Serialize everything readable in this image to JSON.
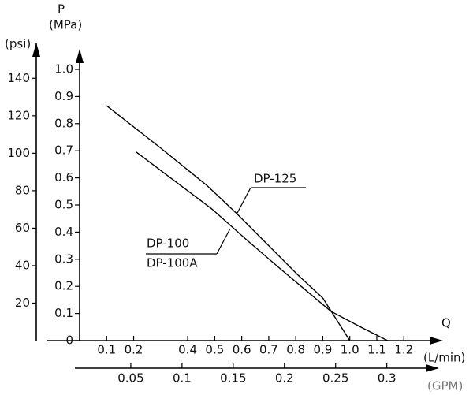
{
  "chart_data": {
    "type": "line",
    "y_label": "P",
    "y_unit": "(MPa)",
    "y2_unit": "(psi)",
    "x_label": "Q",
    "x_unit": "(L/min)",
    "x2_unit": "(GPM)",
    "xlim": [
      0,
      1.3
    ],
    "xticks": [
      0.1,
      0.2,
      0.4,
      0.5,
      0.6,
      0.7,
      0.8,
      0.9,
      {
        "value": 1,
        "label": "1.0"
      },
      1.1,
      1.2
    ],
    "x2lim": [
      0,
      0.343
    ],
    "x2ticks": [
      0.05,
      0.1,
      0.15,
      0.2,
      0.25,
      0.3
    ],
    "ylim": [
      0,
      1.05
    ],
    "yticks": [
      0,
      0.1,
      0.2,
      0.3,
      0.4,
      0.5,
      0.6,
      0.7,
      0.8,
      0.9,
      {
        "value": 1,
        "label": "1.0"
      }
    ],
    "y2lim": [
      0,
      152
    ],
    "y2ticks": [
      20,
      40,
      60,
      80,
      100,
      120,
      140
    ],
    "series": [
      {
        "name": "DP-125",
        "color": "#000000",
        "x": [
          0.1,
          0.3,
          0.47,
          0.58,
          0.7,
          0.81,
          0.9,
          1.0
        ],
        "values": [
          0.866,
          0.71,
          0.573,
          0.47,
          0.35,
          0.24,
          0.157,
          0
        ]
      },
      {
        "name": "DP-100",
        "alt_name": "DP-100A",
        "color": "#000000",
        "x": [
          0.21,
          0.35,
          0.49,
          0.62,
          0.74,
          0.85,
          0.93,
          1.04,
          1.14
        ],
        "values": [
          0.695,
          0.59,
          0.485,
          0.37,
          0.267,
          0.175,
          0.108,
          0.05,
          0
        ]
      }
    ]
  }
}
